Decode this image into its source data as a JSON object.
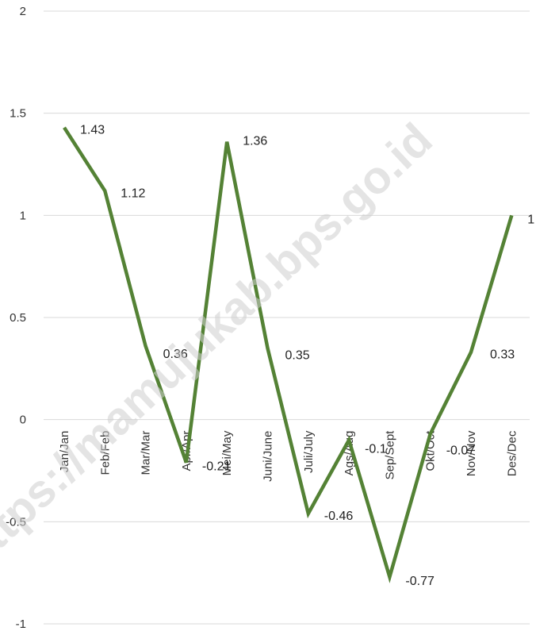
{
  "chart_data": {
    "type": "line",
    "title": "",
    "xlabel": "",
    "ylabel": "",
    "categories": [
      "Jan/Jan",
      "Feb/Feb",
      "Mar/Mar",
      "Apr/Apr",
      "Mei/May",
      "Juni/June",
      "Juli/July",
      "Ags/Aug",
      "Sep/Sept",
      "Okt/Oct",
      "Nov/Nov",
      "Des/Dec"
    ],
    "series": [
      {
        "values": [
          1.43,
          1.12,
          0.36,
          -0.21,
          1.36,
          0.35,
          -0.46,
          -0.1,
          -0.77,
          -0.07,
          0.33,
          1
        ],
        "labels": [
          "1.43",
          "1.12",
          "0.36",
          "-0.21",
          "1.36",
          "0.35",
          "-0.46",
          "-0.1",
          "-0.77",
          "-0.07",
          "0.33",
          "1"
        ],
        "color": "#548235"
      }
    ],
    "ylim": [
      -1,
      2
    ],
    "yticks": [
      2,
      1.5,
      1,
      0.5,
      0,
      -0.5,
      -1
    ],
    "ytick_labels": [
      "2",
      "1.5",
      "1",
      "0.5",
      "0",
      "-0.5",
      "-1"
    ],
    "grid": true,
    "gridline_color": "#d9d9d9",
    "legend": "none"
  },
  "watermark": {
    "text": "https://mamujukab.bps.go.id"
  }
}
